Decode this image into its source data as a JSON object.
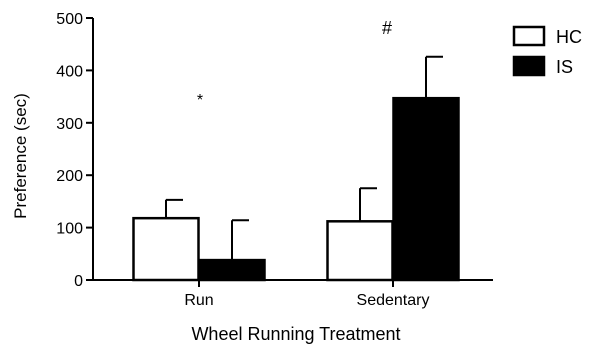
{
  "chart_data": {
    "type": "bar",
    "categories": [
      "Run",
      "Sedentary"
    ],
    "series": [
      {
        "name": "HC",
        "values": [
          118,
          112
        ],
        "errors": [
          35,
          63
        ],
        "color": "#ffffff",
        "stroke": "#000000"
      },
      {
        "name": "IS",
        "values": [
          38,
          347
        ],
        "errors": [
          76,
          79
        ],
        "color": "#000000",
        "stroke": "#000000"
      }
    ],
    "xlabel": "Wheel Running Treatment",
    "ylabel": "Preference (sec)",
    "ylim": [
      0,
      500
    ],
    "yticks": [
      0,
      100,
      200,
      300,
      400,
      500
    ],
    "annotations": [
      {
        "text": "*",
        "category": "Run"
      },
      {
        "text": "#",
        "category": "Sedentary"
      }
    ],
    "legend": {
      "position": "top-right",
      "entries": [
        "HC",
        "IS"
      ]
    },
    "grid": false,
    "colors": {
      "axis": "#000000",
      "background": "#ffffff"
    }
  }
}
